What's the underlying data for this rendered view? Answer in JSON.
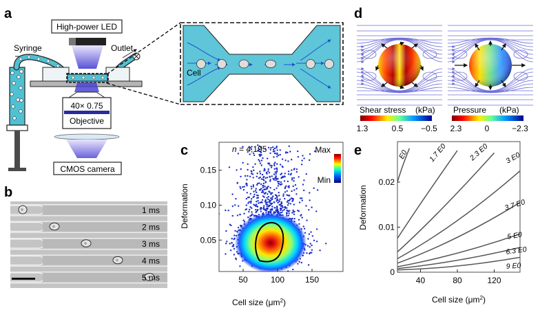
{
  "panels": {
    "a": {
      "letter": "a",
      "led": "High-power LED",
      "syringe": "Syringe",
      "outlet": "Outlet",
      "objective_spec": "40× 0.75",
      "objective": "Objective",
      "camera": "CMOS camera",
      "cell": "Cell"
    },
    "b": {
      "letter": "b",
      "times": [
        "1 ms",
        "2 ms",
        "3 ms",
        "4 ms",
        "5 ms"
      ]
    },
    "c": {
      "letter": "c",
      "n_italic": "n",
      "n_value": " = 4,195",
      "colorbar_max": "Max",
      "colorbar_min": "Min"
    },
    "d": {
      "letter": "d",
      "shear_label": "Shear stress",
      "shear_unit": "(kPa)",
      "shear_ticks": [
        "1.3",
        "0.5",
        "−0.5"
      ],
      "pressure_label": "Pressure",
      "pressure_unit": "(kPa)",
      "pressure_ticks": [
        "2.3",
        "0",
        "−2.3"
      ]
    },
    "e": {
      "letter": "e",
      "curve_labels": [
        "E0",
        "1.7 E0",
        "2.3 E0",
        "3 E0",
        "3.7 E0",
        "5 E0",
        "6.3 E0",
        "9 E0"
      ]
    }
  },
  "chart_data": [
    {
      "type": "scatter",
      "panel": "c",
      "xlabel": "Cell size (μm²)",
      "ylabel": "Deformation",
      "xlim": [
        15,
        195
      ],
      "ylim": [
        0.005,
        0.19
      ],
      "xticks": [
        50,
        100,
        150
      ],
      "yticks": [
        0.05,
        0.1,
        0.15
      ],
      "n": 4195,
      "density_peak": {
        "x": 90,
        "y": 0.046
      },
      "color_scale": "jet"
    },
    {
      "type": "line",
      "panel": "e",
      "xlabel": "Cell size (μm²)",
      "ylabel": "Deformation",
      "xlim": [
        15,
        148
      ],
      "ylim": [
        0,
        0.029
      ],
      "xticks": [
        40,
        80,
        120
      ],
      "yticks": [
        0,
        0.01,
        0.02
      ],
      "series": [
        {
          "name": "E0",
          "x": [
            15,
            20,
            28
          ],
          "y": [
            0.02,
            0.0235,
            0.0275
          ]
        },
        {
          "name": "1.7 E0",
          "x": [
            15,
            40,
            80
          ],
          "y": [
            0.0075,
            0.016,
            0.027
          ]
        },
        {
          "name": "2.3 E0",
          "x": [
            15,
            60,
            120
          ],
          "y": [
            0.0045,
            0.0135,
            0.0265
          ]
        },
        {
          "name": "3 E0",
          "x": [
            15,
            80,
            148
          ],
          "y": [
            0.003,
            0.011,
            0.0225
          ]
        },
        {
          "name": "3.7 E0",
          "x": [
            15,
            80,
            148
          ],
          "y": [
            0.002,
            0.0075,
            0.0155
          ]
        },
        {
          "name": "5 E0",
          "x": [
            15,
            80,
            148
          ],
          "y": [
            0.0012,
            0.0043,
            0.0085
          ]
        },
        {
          "name": "6.3 E0",
          "x": [
            15,
            80,
            148
          ],
          "y": [
            0.0008,
            0.0028,
            0.0055
          ]
        },
        {
          "name": "9 E0",
          "x": [
            15,
            80,
            148
          ],
          "y": [
            0.0005,
            0.0015,
            0.0033
          ]
        }
      ]
    }
  ]
}
